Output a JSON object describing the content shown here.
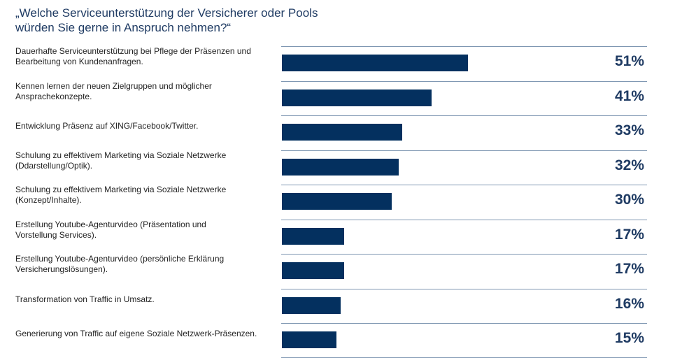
{
  "chart_data": {
    "type": "bar",
    "orientation": "horizontal",
    "title_lines": [
      "„Welche Serviceunterstützung der Versicherer oder Pools",
      "würden Sie gerne in Anspruch nehmen?“"
    ],
    "categories": [
      [
        "Dauerhafte Serviceunterstützung bei Pflege der Präsenzen und",
        "Bearbeitung von Kundenanfragen."
      ],
      [
        "Kennen lernen der neuen Zielgruppen und möglicher",
        "Ansprachekonzepte."
      ],
      [
        "Entwicklung Präsenz auf XING/Facebook/Twitter."
      ],
      [
        "Schulung zu effektivem Marketing via Soziale Netzwerke",
        "(Ddarstellung/Optik)."
      ],
      [
        "Schulung zu effektivem Marketing via Soziale Netzwerke",
        "(Konzept/Inhalte)."
      ],
      [
        "Erstellung Youtube-Agenturvideo (Präsentation und",
        "Vorstellung Services)."
      ],
      [
        "Erstellung Youtube-Agenturvideo (persönliche Erklärung",
        "Versicherungslösungen)."
      ],
      [
        "Transformation von Traffic in Umsatz."
      ],
      [
        "Generierung von Traffic auf eigene Soziale Netzwerk-Präsenzen."
      ]
    ],
    "values": [
      51,
      41,
      33,
      32,
      30,
      17,
      17,
      16,
      15
    ],
    "value_labels": [
      "51%",
      "41%",
      "33%",
      "32%",
      "30%",
      "17%",
      "17%",
      "16%",
      "15%"
    ],
    "unit": "%",
    "xlim": [
      0,
      100
    ],
    "grid": false,
    "legend": "none",
    "bar_color": "#04305f",
    "text_color": "#1f3b63"
  }
}
